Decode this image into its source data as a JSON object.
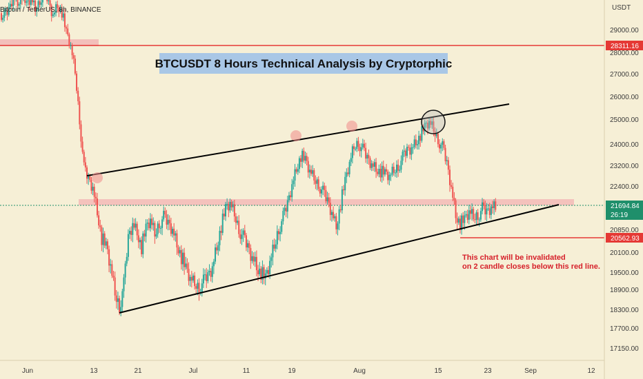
{
  "symbol_label": "Bitcoin / TetherUS, 8h, BINANCE",
  "currency_label": "USDT",
  "title": "BTCUSDT 8 Hours Technical Analysis by Cryptorphic",
  "note_lines": [
    "This chart will be invalidated",
    "on 2 candle closes below this red line."
  ],
  "price_tags": {
    "resistance": "28311.16",
    "current": "21694.84",
    "countdown": "26:19",
    "invalidation": "20562.93"
  },
  "colors": {
    "background": "#f6efd6",
    "bull": "#26a69a",
    "bear": "#ef5350",
    "red_line": "#e53935",
    "trendline": "#000000",
    "zone": "#f3b3b3",
    "current_price": "#1f8f6b"
  },
  "chart_data": {
    "type": "candlestick",
    "title": "BTCUSDT 8 Hours Technical Analysis by Cryptorphic",
    "y_axis": {
      "label": "USDT",
      "ticks": [
        29000,
        28000,
        27000,
        26000,
        25000,
        24000,
        23200,
        22400,
        20850,
        20100,
        19500,
        18900,
        18300,
        17700,
        17150
      ]
    },
    "x_axis": {
      "ticks": [
        "Jun",
        "13",
        "21",
        "Jul",
        "11",
        "19",
        "Aug",
        "15",
        "23",
        "Sep",
        "12"
      ]
    },
    "horizontal_levels": [
      {
        "price": 28311.16,
        "color": "#e53935",
        "label": "resistance"
      },
      {
        "price": 20562.93,
        "color": "#e53935",
        "label": "invalidation"
      },
      {
        "price": 21694.84,
        "color": "#1f8f6b",
        "label": "current"
      }
    ],
    "candles_close_approx": [
      29600,
      29900,
      30500,
      30200,
      30600,
      30100,
      30400,
      29900,
      30300,
      30800,
      30200,
      29700,
      30100,
      29800,
      28900,
      28300,
      27100,
      25000,
      23100,
      22700,
      22400,
      21500,
      20600,
      20300,
      19700,
      18800,
      18400,
      19100,
      20600,
      21100,
      20800,
      20300,
      20900,
      21200,
      20700,
      21100,
      21300,
      21100,
      20900,
      20400,
      20000,
      19600,
      19300,
      19100,
      19000,
      19200,
      19400,
      19700,
      20300,
      21000,
      21600,
      21800,
      21400,
      20900,
      20600,
      20300,
      20000,
      19700,
      19500,
      19300,
      19800,
      20300,
      20900,
      21300,
      21800,
      22500,
      23100,
      23600,
      23400,
      23000,
      22700,
      22500,
      22200,
      21900,
      21500,
      21000,
      21800,
      22600,
      23300,
      23900,
      24100,
      23800,
      23500,
      23300,
      23100,
      23000,
      22900,
      22800,
      23000,
      23200,
      23500,
      23800,
      23900,
      24100,
      24400,
      24700,
      24900,
      24600,
      24200,
      23900,
      23300,
      22400,
      21400,
      21100,
      21200,
      21500,
      21300,
      21400,
      21600,
      21500,
      21700,
      21694.84
    ]
  }
}
